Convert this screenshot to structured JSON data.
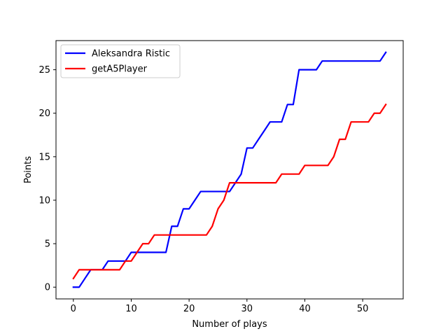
{
  "chart_data": {
    "type": "line",
    "xlabel": "Number of plays",
    "ylabel": "Points",
    "xlim": [
      -3,
      57
    ],
    "ylim": [
      -1.35,
      28.35
    ],
    "xticks": [
      0,
      10,
      20,
      30,
      40,
      50
    ],
    "yticks": [
      0,
      5,
      10,
      15,
      20,
      25
    ],
    "grid": false,
    "legend": "top-left",
    "series": [
      {
        "name": "Aleksandra Ristic",
        "color": "#0000ff",
        "x": [
          0,
          1,
          2,
          3,
          4,
          5,
          6,
          7,
          8,
          9,
          10,
          11,
          12,
          13,
          14,
          15,
          16,
          17,
          18,
          19,
          20,
          21,
          22,
          23,
          24,
          25,
          26,
          27,
          28,
          29,
          30,
          31,
          32,
          33,
          34,
          35,
          36,
          37,
          38,
          39,
          40,
          41,
          42,
          43,
          44,
          45,
          46,
          47,
          48,
          49,
          50,
          51,
          52,
          53,
          54
        ],
        "y": [
          0,
          0,
          1,
          2,
          2,
          2,
          3,
          3,
          3,
          3,
          4,
          4,
          4,
          4,
          4,
          4,
          4,
          7,
          7,
          9,
          9,
          10,
          11,
          11,
          11,
          11,
          11,
          11,
          12,
          13,
          16,
          16,
          17,
          18,
          19,
          19,
          19,
          21,
          21,
          25,
          25,
          25,
          25,
          26,
          26,
          26,
          26,
          26,
          26,
          26,
          26,
          26,
          26,
          26,
          27
        ]
      },
      {
        "name": "getA5Player",
        "color": "#ff0000",
        "x": [
          0,
          1,
          2,
          3,
          4,
          5,
          6,
          7,
          8,
          9,
          10,
          11,
          12,
          13,
          14,
          15,
          16,
          17,
          18,
          19,
          20,
          21,
          22,
          23,
          24,
          25,
          26,
          27,
          28,
          29,
          30,
          31,
          32,
          33,
          34,
          35,
          36,
          37,
          38,
          39,
          40,
          41,
          42,
          43,
          44,
          45,
          46,
          47,
          48,
          49,
          50,
          51,
          52,
          53,
          54
        ],
        "y": [
          1,
          2,
          2,
          2,
          2,
          2,
          2,
          2,
          2,
          3,
          3,
          4,
          5,
          5,
          6,
          6,
          6,
          6,
          6,
          6,
          6,
          6,
          6,
          6,
          7,
          9,
          10,
          12,
          12,
          12,
          12,
          12,
          12,
          12,
          12,
          12,
          13,
          13,
          13,
          13,
          14,
          14,
          14,
          14,
          14,
          15,
          17,
          17,
          19,
          19,
          19,
          19,
          20,
          20,
          21
        ]
      }
    ]
  }
}
